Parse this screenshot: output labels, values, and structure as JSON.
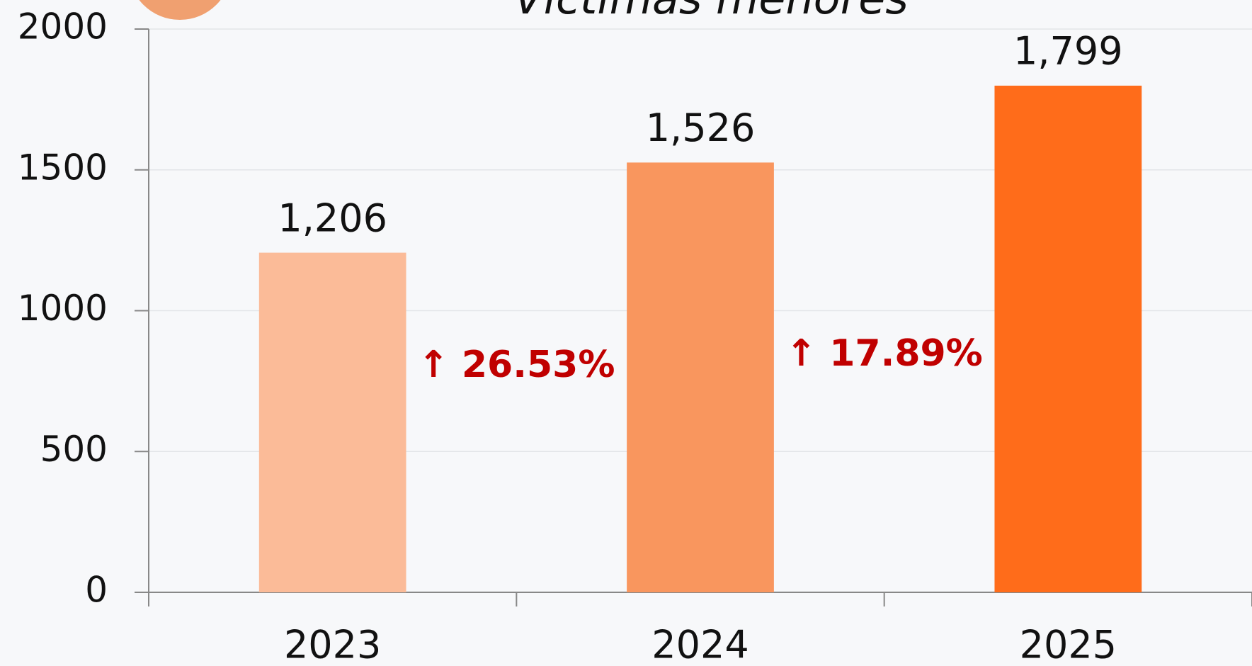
{
  "chart_data": {
    "type": "bar",
    "title": "Víctimas menores",
    "categories": [
      "2023",
      "2024",
      "2025"
    ],
    "values": [
      1206,
      1526,
      1799
    ],
    "value_labels": [
      "1,206",
      "1,526",
      "1,799"
    ],
    "colors": [
      "#fbbb98",
      "#f9965e",
      "#ff6c1a"
    ],
    "annotations": [
      "↑ 26.53%",
      "↑ 17.89%"
    ],
    "ylim": [
      0,
      2000
    ],
    "yticks": [
      0,
      500,
      1000,
      1500,
      2000
    ],
    "grid": true
  }
}
